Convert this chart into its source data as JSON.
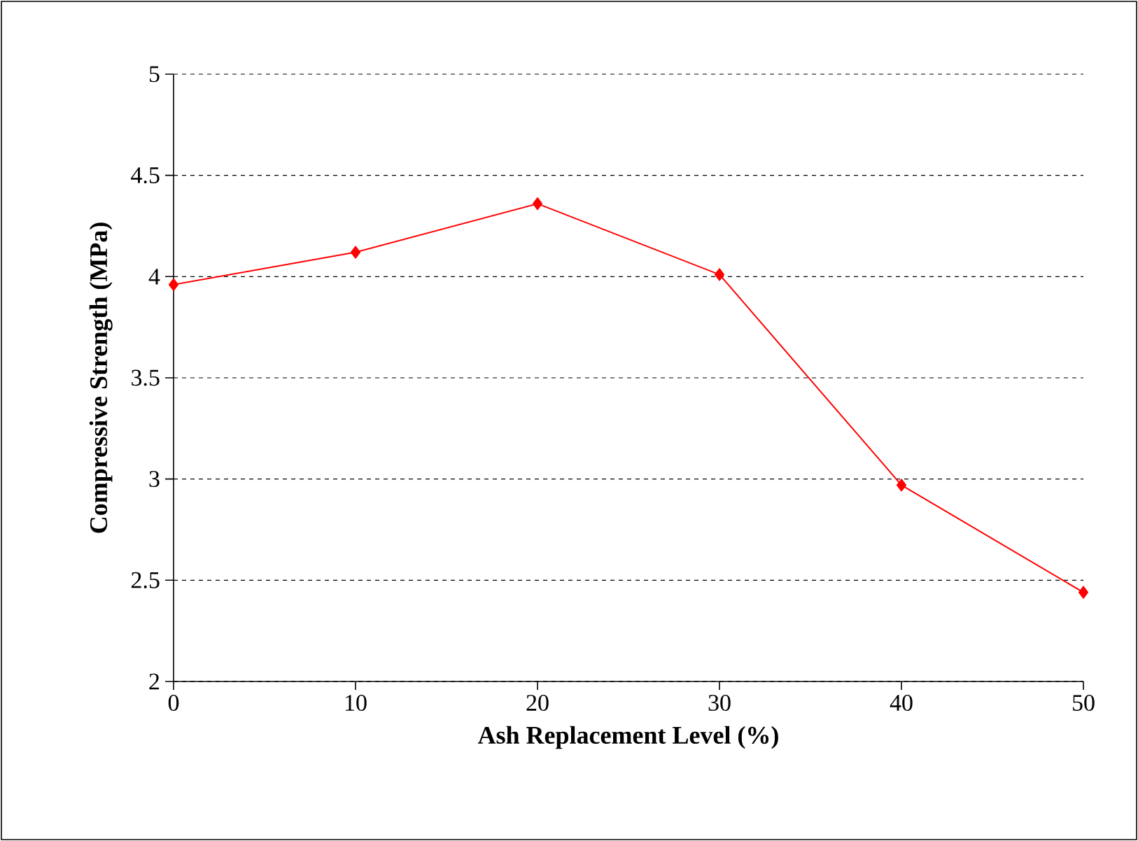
{
  "chart_data": {
    "type": "line",
    "xlabel": "Ash Replacement Level (%)",
    "ylabel": "Compressive Strength (MPa)",
    "x": [
      0,
      10,
      20,
      30,
      40,
      50
    ],
    "series": [
      {
        "color": "#ff0000",
        "values": [
          3.96,
          4.12,
          4.36,
          4.01,
          2.97,
          2.44
        ]
      }
    ],
    "xlim": [
      0,
      50
    ],
    "xticks": [
      0,
      10,
      20,
      30,
      40,
      50
    ],
    "ylim": [
      2,
      5
    ],
    "yticks": [
      2,
      2.5,
      3,
      3.5,
      4,
      4.5,
      5
    ],
    "grid": "y",
    "marker": "diamond",
    "line_style": "solid",
    "legend": false
  }
}
